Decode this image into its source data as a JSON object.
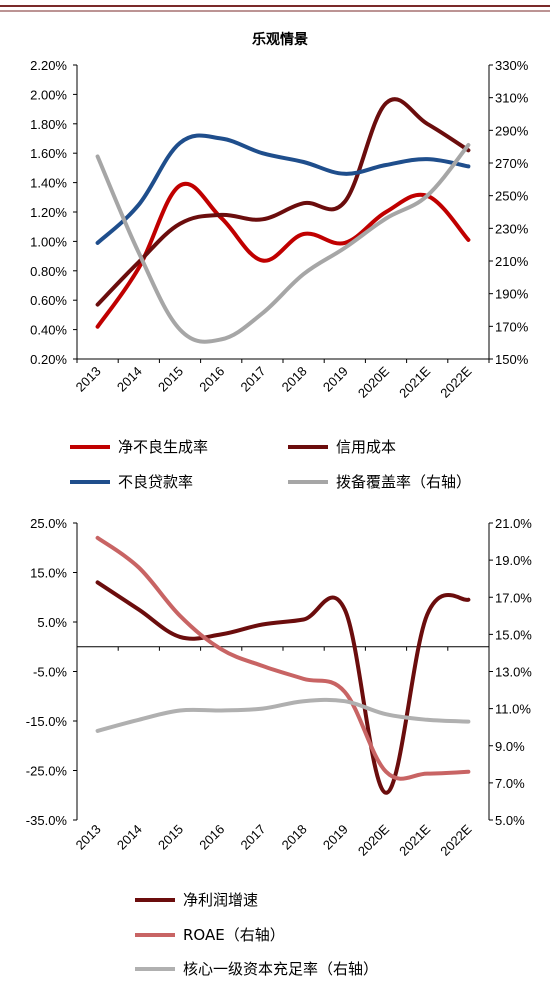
{
  "chart_data": [
    {
      "type": "line",
      "title": "乐观情景",
      "categories": [
        "2013",
        "2014",
        "2015",
        "2016",
        "2017",
        "2018",
        "2019",
        "2020E",
        "2021E",
        "2022E"
      ],
      "y_left": {
        "ticks": [
          "0.20%",
          "0.40%",
          "0.60%",
          "0.80%",
          "1.00%",
          "1.20%",
          "1.40%",
          "1.60%",
          "1.80%",
          "2.00%",
          "2.20%"
        ],
        "range": [
          0.2,
          2.2
        ]
      },
      "y_right": {
        "ticks": [
          "150%",
          "170%",
          "190%",
          "210%",
          "230%",
          "250%",
          "270%",
          "290%",
          "310%",
          "330%"
        ],
        "range": [
          150,
          330
        ]
      },
      "series": [
        {
          "name": "净不良生成率",
          "axis": "left",
          "color": "#c00000",
          "values": [
            0.42,
            0.82,
            1.38,
            1.16,
            0.87,
            1.05,
            0.99,
            1.2,
            1.31,
            1.01
          ]
        },
        {
          "name": "信用成本",
          "axis": "left",
          "color": "#6b0d0d",
          "values": [
            0.57,
            0.86,
            1.12,
            1.18,
            1.15,
            1.26,
            1.27,
            1.94,
            1.8,
            1.62
          ]
        },
        {
          "name": "不良贷款率",
          "axis": "left",
          "color": "#1f4e8c",
          "values": [
            0.99,
            1.25,
            1.67,
            1.7,
            1.6,
            1.54,
            1.46,
            1.52,
            1.56,
            1.51
          ]
        },
        {
          "name": "拨备覆盖率（右轴）",
          "axis": "right",
          "color": "#a6a6a6",
          "values": [
            274,
            215,
            168,
            162,
            178,
            202,
            218,
            236,
            250,
            281
          ]
        }
      ],
      "legend": [
        {
          "label": "净不良生成率",
          "color": "#c00000"
        },
        {
          "label": "信用成本",
          "color": "#6b0d0d"
        },
        {
          "label": "不良贷款率",
          "color": "#1f4e8c"
        },
        {
          "label": "拨备覆盖率（右轴）",
          "color": "#a6a6a6"
        }
      ]
    },
    {
      "type": "line",
      "categories": [
        "2013",
        "2014",
        "2015",
        "2016",
        "2017",
        "2018",
        "2019",
        "2020E",
        "2021E",
        "2022E"
      ],
      "y_left": {
        "ticks": [
          "-35.0%",
          "-25.0%",
          "-15.0%",
          "-5.0%",
          "5.0%",
          "15.0%",
          "25.0%"
        ],
        "range": [
          -35,
          25
        ]
      },
      "y_right": {
        "ticks": [
          "5.0%",
          "7.0%",
          "9.0%",
          "11.0%",
          "13.0%",
          "15.0%",
          "17.0%",
          "19.0%",
          "21.0%"
        ],
        "range": [
          5,
          21
        ]
      },
      "series": [
        {
          "name": "净利润增速",
          "axis": "left",
          "color": "#6b0d0d",
          "values": [
            13.0,
            7.5,
            2.0,
            2.5,
            4.5,
            5.5,
            7.5,
            -29.5,
            6.5,
            9.5
          ]
        },
        {
          "name": "ROAE（右轴）",
          "axis": "right",
          "color": "#c86464",
          "values": [
            20.2,
            18.6,
            16.0,
            14.2,
            13.3,
            12.6,
            11.9,
            7.6,
            7.5,
            7.6
          ]
        },
        {
          "name": "核心一级资本充足率（右轴）",
          "axis": "right",
          "color": "#b0b0b0",
          "values": [
            9.8,
            10.4,
            10.9,
            10.9,
            11.0,
            11.4,
            11.4,
            10.7,
            10.4,
            10.3
          ]
        }
      ],
      "legend": [
        {
          "label": "净利润增速",
          "color": "#6b0d0d"
        },
        {
          "label": "ROAE（右轴）",
          "color": "#c86464"
        },
        {
          "label": "核心一级资本充足率（右轴）",
          "color": "#b0b0b0"
        }
      ]
    }
  ]
}
